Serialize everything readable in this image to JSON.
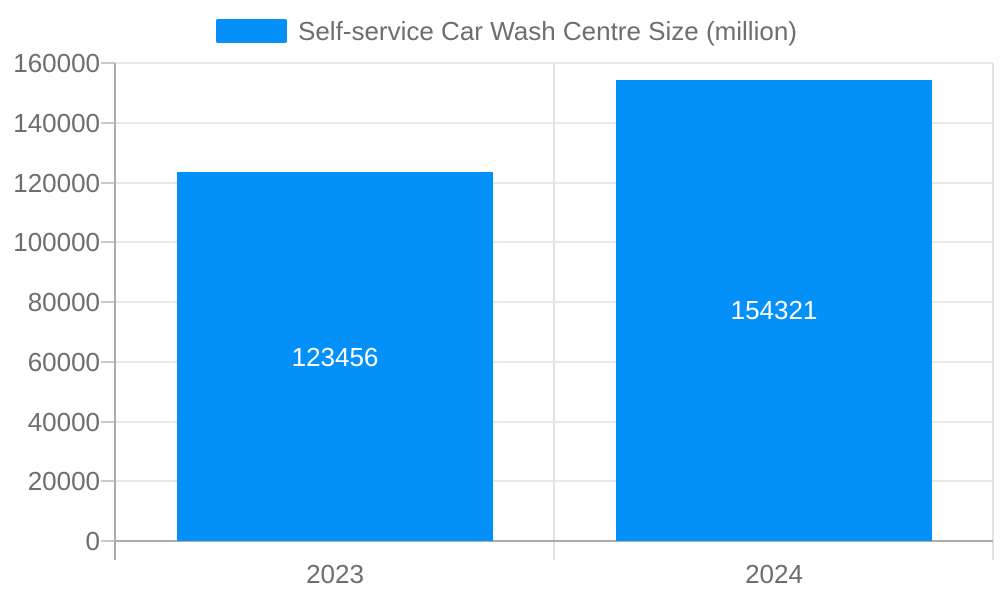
{
  "legend": {
    "label": "Self-service Car Wash Centre Size (million)"
  },
  "chart_data": {
    "type": "bar",
    "title": "Self-service Car Wash Centre Size (million)",
    "categories": [
      "2023",
      "2024"
    ],
    "series": [
      {
        "name": "Self-service Car Wash Centre Size (million)",
        "values": [
          123456,
          154321
        ]
      }
    ],
    "bar_labels": [
      "123456",
      "154321"
    ],
    "xlabel": "",
    "ylabel": "",
    "ylim": [
      0,
      160000
    ],
    "ytick_step": 20000,
    "ytick_labels": [
      "0",
      "20000",
      "40000",
      "60000",
      "80000",
      "100000",
      "120000",
      "140000",
      "160000"
    ],
    "grid": true,
    "legend_position": "top-center",
    "colors": {
      "bar": "#0490f9",
      "bar_label_text": "#ffffff",
      "axis_text": "#6e6e6e",
      "axis_line": "#acacac",
      "grid_line": "#e9e9e9",
      "boundary_line": "#e2e2e2",
      "tick_line": "#c9c9c9",
      "background": "#ffffff"
    }
  }
}
